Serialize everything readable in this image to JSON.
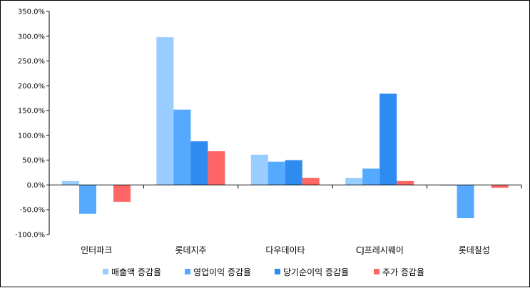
{
  "chart_data": {
    "type": "bar",
    "title": "",
    "xlabel": "",
    "ylabel": "",
    "categories": [
      "인터파크",
      "롯데지주",
      "다우데이타",
      "CJ프레시웨이",
      "롯데칠성"
    ],
    "series": [
      {
        "name": "매출액 증감율",
        "color": "#99ccff",
        "values": [
          8,
          298,
          61,
          14,
          -1
        ]
      },
      {
        "name": "영업이익 증감율",
        "color": "#55aaff",
        "values": [
          -58,
          152,
          47,
          33,
          -67
        ]
      },
      {
        "name": "당기순이익 증감율",
        "color": "#2e8bf0",
        "values": [
          0,
          88,
          50,
          184,
          0
        ]
      },
      {
        "name": "주가 증감율",
        "color": "#ff6666",
        "values": [
          -34,
          68,
          14,
          8,
          -6
        ]
      }
    ],
    "ylim": [
      -100,
      350
    ],
    "yticks": [
      350,
      300,
      250,
      200,
      150,
      100,
      50,
      0,
      -50,
      -100
    ],
    "ytick_labels": [
      "350.0%",
      "300.0%",
      "250.0%",
      "200.0%",
      "150.0%",
      "100.0%",
      "50.0%",
      "0.0%",
      "-50.0%",
      "-100.0%"
    ],
    "grid": false,
    "legend_position": "bottom"
  }
}
